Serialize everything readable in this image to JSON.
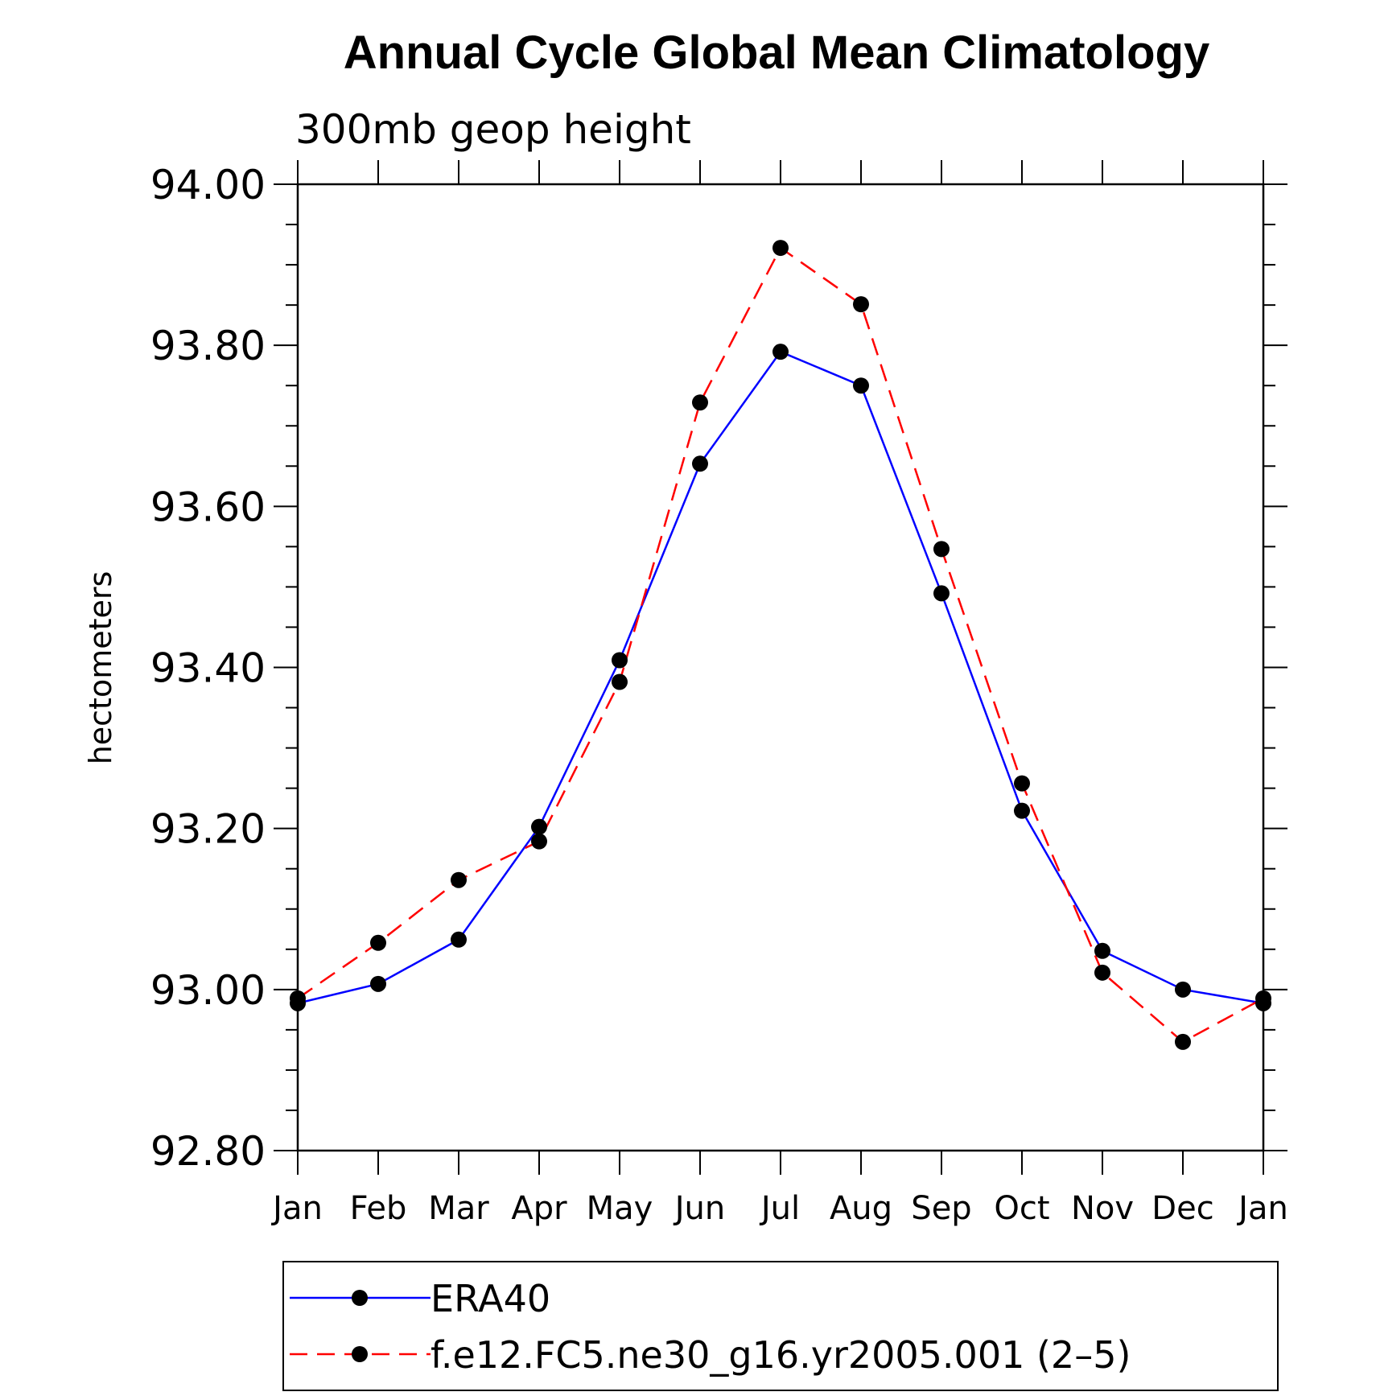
{
  "chart_data": {
    "type": "line",
    "title": "Annual Cycle Global Mean Climatology",
    "subtitle": "300mb geop height",
    "ylabel": "hectometers",
    "xlabel": "",
    "categories": [
      "Jan",
      "Feb",
      "Mar",
      "Apr",
      "May",
      "Jun",
      "Jul",
      "Aug",
      "Sep",
      "Oct",
      "Nov",
      "Dec",
      "Jan"
    ],
    "ylim": [
      92.8,
      94.0
    ],
    "yticks": [
      "94.00",
      "93.80",
      "93.60",
      "93.40",
      "93.20",
      "93.00",
      "92.80"
    ],
    "ytick_values": [
      94.0,
      93.8,
      93.6,
      93.4,
      93.2,
      93.0,
      92.8
    ],
    "legend_position": "bottom",
    "series": [
      {
        "name": "ERA40",
        "color": "#0000ff",
        "dash": "solid",
        "values": [
          92.983,
          93.007,
          93.062,
          93.202,
          93.409,
          93.653,
          93.792,
          93.75,
          93.492,
          93.222,
          93.048,
          93.0,
          92.983
        ]
      },
      {
        "name": "f.e12.FC5.ne30_g16.yr2005.001 (2–5)",
        "color": "#ff0000",
        "dash": "dashed",
        "values": [
          92.989,
          93.058,
          93.136,
          93.184,
          93.382,
          93.729,
          93.921,
          93.851,
          93.547,
          93.256,
          93.021,
          92.935,
          92.989
        ]
      }
    ]
  }
}
